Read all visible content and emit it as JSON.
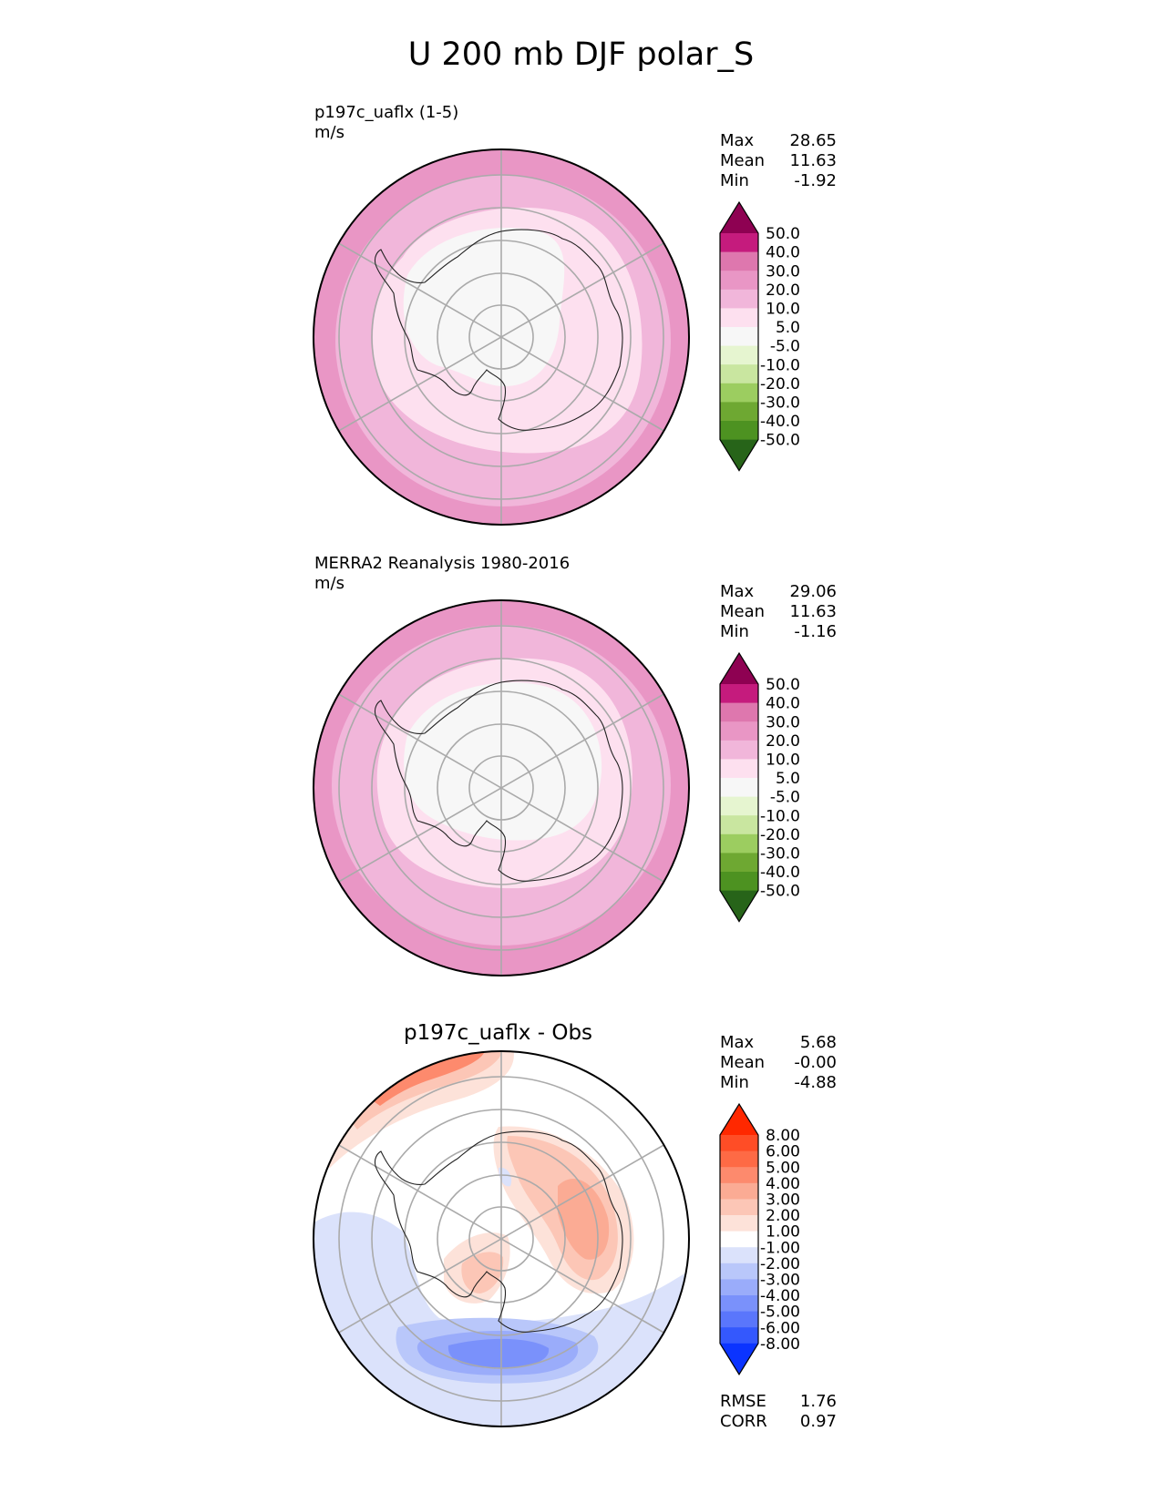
{
  "figure_title": "U 200 mb DJF polar_S",
  "chart_data": [
    {
      "type": "heatmap",
      "projection": "south-polar-stereographic",
      "title": "p197c_uaflx (1-5)",
      "units": "m/s",
      "stats": {
        "max_label": "Max",
        "max": "28.65",
        "mean_label": "Mean",
        "mean": "11.63",
        "min_label": "Min",
        "min": "-1.92"
      },
      "colorbar": {
        "levels": [
          "50.0",
          "40.0",
          "30.0",
          "20.0",
          "10.0",
          "5.0",
          "-5.0",
          "-10.0",
          "-20.0",
          "-30.0",
          "-40.0",
          "-50.0"
        ],
        "colors": [
          "#8e0152",
          "#c51b7d",
          "#de77ae",
          "#e996c5",
          "#f1b6da",
          "#fde0ef",
          "#f7f7f7",
          "#e6f5d0",
          "#c9e6a0",
          "#9ccd60",
          "#6ea832",
          "#4d9221",
          "#276419"
        ]
      }
    },
    {
      "type": "heatmap",
      "projection": "south-polar-stereographic",
      "title": "MERRA2 Reanalysis 1980-2016",
      "units": "m/s",
      "stats": {
        "max_label": "Max",
        "max": "29.06",
        "mean_label": "Mean",
        "mean": "11.63",
        "min_label": "Min",
        "min": "-1.16"
      },
      "colorbar": {
        "levels": [
          "50.0",
          "40.0",
          "30.0",
          "20.0",
          "10.0",
          "5.0",
          "-5.0",
          "-10.0",
          "-20.0",
          "-30.0",
          "-40.0",
          "-50.0"
        ],
        "colors": [
          "#8e0152",
          "#c51b7d",
          "#de77ae",
          "#e996c5",
          "#f1b6da",
          "#fde0ef",
          "#f7f7f7",
          "#e6f5d0",
          "#c9e6a0",
          "#9ccd60",
          "#6ea832",
          "#4d9221",
          "#276419"
        ]
      }
    },
    {
      "type": "heatmap",
      "projection": "south-polar-stereographic",
      "title": "p197c_uaflx - Obs",
      "stats": {
        "max_label": "Max",
        "max": "5.68",
        "mean_label": "Mean",
        "mean": "-0.00",
        "min_label": "Min",
        "min": "-4.88"
      },
      "metrics": {
        "rmse_label": "RMSE",
        "rmse": "1.76",
        "corr_label": "CORR",
        "corr": "0.97"
      },
      "colorbar": {
        "levels": [
          "8.00",
          "6.00",
          "5.00",
          "4.00",
          "3.00",
          "2.00",
          "1.00",
          "-1.00",
          "-2.00",
          "-3.00",
          "-4.00",
          "-5.00",
          "-6.00",
          "-8.00"
        ],
        "colors": [
          "#ff2800",
          "#ff4d26",
          "#fe6a45",
          "#fd8a6d",
          "#fbab94",
          "#fcc6b6",
          "#fde2d9",
          "#ffffff",
          "#dbe2fb",
          "#b9c7fa",
          "#9aacfa",
          "#7a91fb",
          "#5a76fc",
          "#3458fd",
          "#0b34ff"
        ]
      }
    }
  ]
}
